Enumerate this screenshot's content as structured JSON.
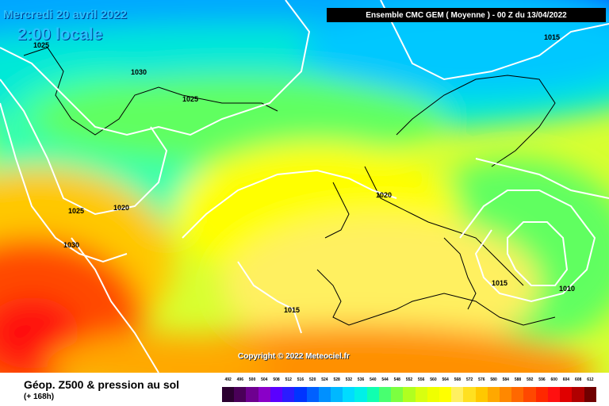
{
  "header": {
    "date": "Mercredi 20 avril 2022",
    "local_time": "2:00 locale",
    "run_info": "Ensemble CMC GEM  ( Moyenne )  -  00 Z du 13/04/2022"
  },
  "footer": {
    "title": "Géop. Z500 & pression au sol",
    "lead": "(+ 168h)"
  },
  "copyright": "Copyright © 2022 Meteociel.fr",
  "isobar_labels": [
    "1025",
    "1030",
    "1025",
    "1015",
    "1020",
    "1025",
    "1020",
    "1030",
    "1015",
    "1015",
    "1010"
  ],
  "colors": {
    "isobar": "#ffffff",
    "coastline": "#000000",
    "title_text": "#29c1ff"
  },
  "legend": {
    "values": [
      "492",
      "496",
      "500",
      "504",
      "508",
      "512",
      "516",
      "520",
      "524",
      "528",
      "532",
      "536",
      "540",
      "544",
      "548",
      "552",
      "556",
      "560",
      "564",
      "568",
      "572",
      "576",
      "580",
      "584",
      "588",
      "592",
      "596",
      "600",
      "604",
      "608",
      "612"
    ],
    "colors": [
      "#2c0030",
      "#4a0058",
      "#6e0090",
      "#8a00c8",
      "#5a00ff",
      "#2a1cff",
      "#0034ff",
      "#0060ff",
      "#0090ff",
      "#00b8ff",
      "#00dcff",
      "#00f0e8",
      "#10ffb0",
      "#48ff70",
      "#7cff40",
      "#b0ff20",
      "#d8ff10",
      "#f0ff00",
      "#ffff00",
      "#fff060",
      "#ffe020",
      "#ffc800",
      "#ffa800",
      "#ff8800",
      "#ff6800",
      "#ff4800",
      "#ff2800",
      "#ff1010",
      "#e00000",
      "#b00000",
      "#700000"
    ]
  }
}
